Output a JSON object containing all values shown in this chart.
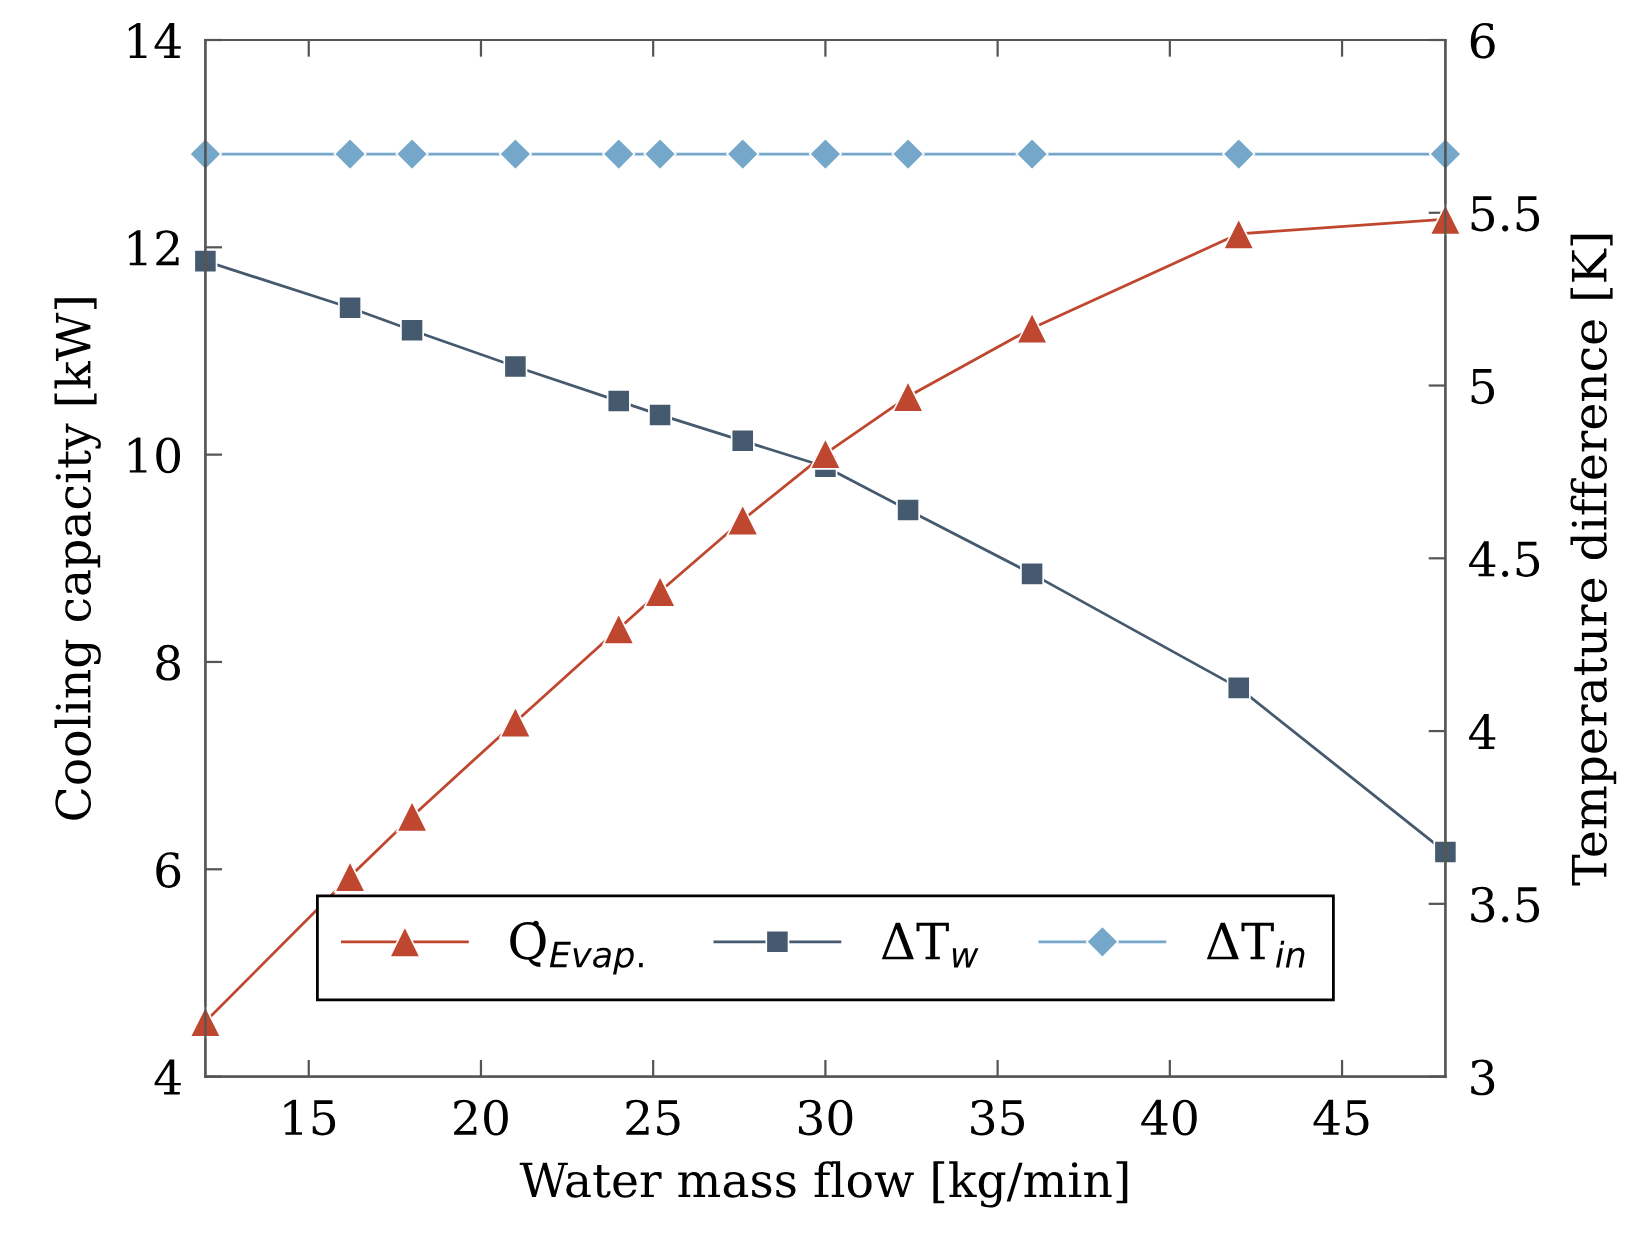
{
  "chart_data": {
    "type": "line",
    "xlabel": "Water mass flow [kg/min]",
    "ylabel": "Cooling capacity [kW]",
    "y2label": "Temperature difference [K]",
    "x": [
      12,
      16.2,
      18,
      21,
      24,
      25.2,
      27.6,
      30,
      32.4,
      36,
      42,
      48
    ],
    "series": [
      {
        "name": "Q̇$_{Evap.}$",
        "color": "#c0472f",
        "marker": "triangle",
        "values": [
          4.53,
          5.93,
          6.51,
          7.42,
          8.32,
          8.68,
          9.37,
          10.01,
          10.56,
          11.22,
          12.13,
          12.27
        ]
      },
      {
        "name": "ΔT$_{w}$",
        "color": "#455a6e",
        "marker": "square",
        "axis": "y2",
        "values": [
          5.36,
          5.225,
          5.16,
          5.055,
          4.955,
          4.915,
          4.84,
          4.765,
          4.64,
          4.455,
          4.125,
          3.65
        ]
      },
      {
        "name": "ΔT$_{in}$",
        "color": "#74a7c9",
        "marker": "diamond",
        "axis": "y2",
        "values": [
          5.67,
          5.67,
          5.67,
          5.67,
          5.67,
          5.67,
          5.67,
          5.67,
          5.67,
          5.67,
          5.67,
          5.67
        ]
      }
    ],
    "xlim": [
      12,
      48
    ],
    "xticks": [
      15,
      20,
      25,
      30,
      35,
      40,
      45
    ],
    "ylim": [
      4,
      14
    ],
    "yticks": [
      4,
      6,
      8,
      10,
      12,
      14
    ],
    "y2lim": [
      3,
      6
    ],
    "y2ticks": [
      3,
      3.5,
      4,
      4.5,
      5,
      5.5,
      6
    ],
    "grid": false,
    "legend": "bottom",
    "line_style": "solid"
  }
}
